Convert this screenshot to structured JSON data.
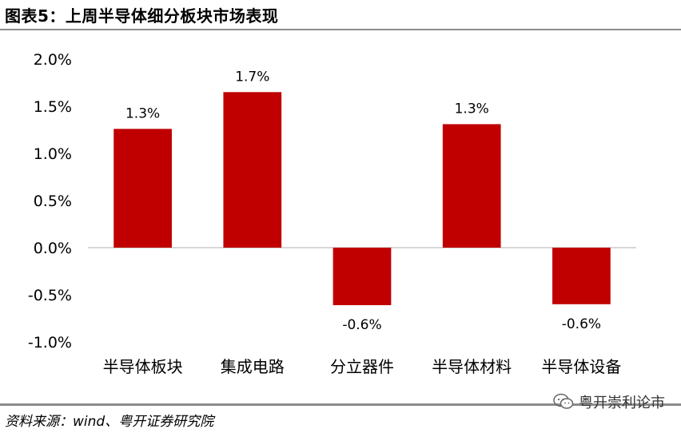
{
  "figure": {
    "title": "图表5：上周半导体细分板块市场表现",
    "source": "资料来源：wind、粤开证券研究院",
    "watermark": "粤开崇利论市"
  },
  "chart_data": {
    "type": "bar",
    "title": "",
    "xlabel": "",
    "ylabel": "",
    "categories": [
      "半导体板块",
      "集成电路",
      "分立器件",
      "半导体材料",
      "半导体设备"
    ],
    "values": [
      1.26,
      1.65,
      -0.61,
      1.31,
      -0.6
    ],
    "data_labels": [
      "1.3%",
      "1.7%",
      "-0.6%",
      "1.3%",
      "-0.6%"
    ],
    "ylim": [
      -1.0,
      2.0
    ],
    "yticks": [
      2.0,
      1.5,
      1.0,
      0.5,
      0.0,
      -0.5,
      -1.0
    ],
    "ytick_labels": [
      "2.0%",
      "1.5%",
      "1.0%",
      "0.5%",
      "0.0%",
      "-0.5%",
      "-1.0%"
    ],
    "bar_color": "#c00000",
    "grid": false,
    "legend": "none"
  }
}
